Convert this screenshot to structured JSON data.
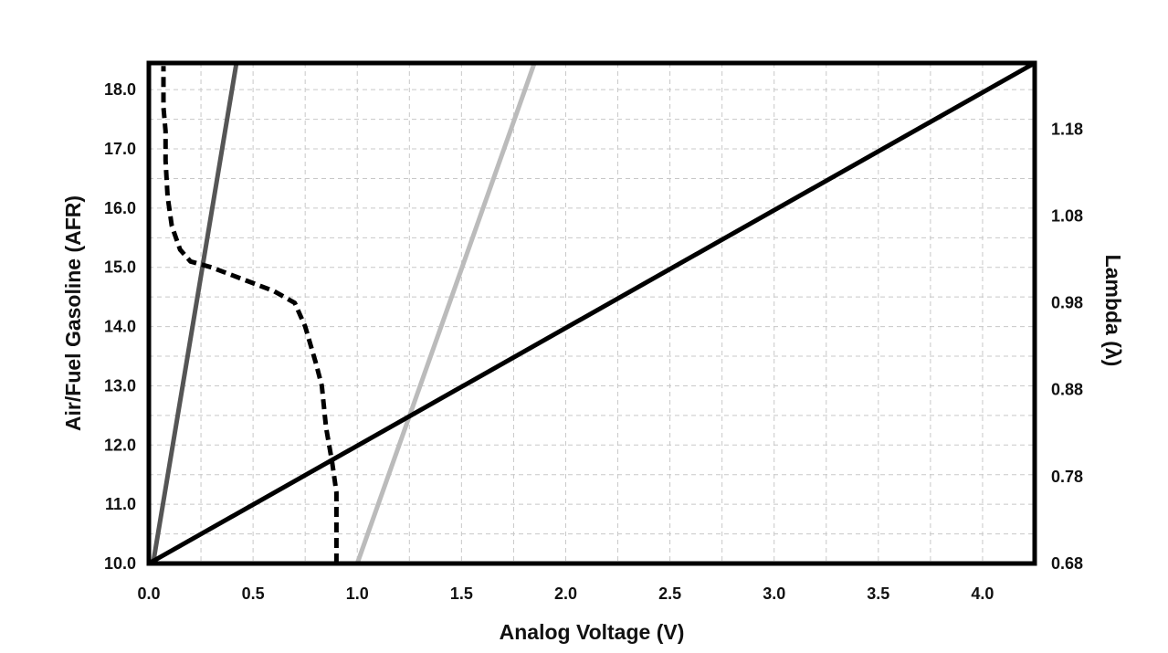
{
  "chart_data": {
    "type": "line",
    "title": "",
    "xlabel": "Analog Voltage (V)",
    "ylabel": "Air/Fuel Gasoline (AFR)",
    "y2label": "Lambda (λ)",
    "xlim": [
      0,
      4.25
    ],
    "ylim": [
      10,
      18.45
    ],
    "y2lim": [
      0.68,
      1.256
    ],
    "grid": true,
    "x_ticks": [
      "0.0",
      "0.5",
      "1.0",
      "1.5",
      "2.0",
      "2.5",
      "3.0",
      "3.5",
      "4.0"
    ],
    "y_ticks": [
      "10.0",
      "11.0",
      "12.0",
      "13.0",
      "14.0",
      "15.0",
      "16.0",
      "17.0",
      "18.0"
    ],
    "y2_ticks": [
      "0.68",
      "0.78",
      "0.88",
      "0.98",
      "1.08",
      "1.18"
    ],
    "series": [
      {
        "name": "dark-grey-line",
        "style": "solid",
        "color": "#555555",
        "x": [
          0.02,
          0.42
        ],
        "y": [
          10.0,
          18.45
        ]
      },
      {
        "name": "light-grey-line",
        "style": "solid",
        "color": "#bbbbbb",
        "x": [
          1.0,
          1.85
        ],
        "y": [
          10.0,
          18.45
        ]
      },
      {
        "name": "black-line",
        "style": "solid",
        "color": "#000000",
        "x": [
          0.0,
          4.25
        ],
        "y": [
          10.0,
          18.45
        ]
      },
      {
        "name": "dashed-curve",
        "style": "dashed",
        "color": "#000000",
        "x": [
          0.9,
          0.9,
          0.88,
          0.85,
          0.83,
          0.8,
          0.75,
          0.7,
          0.6,
          0.45,
          0.3,
          0.2,
          0.15,
          0.11,
          0.09,
          0.08,
          0.08,
          0.07,
          0.07
        ],
        "y": [
          10.0,
          11.2,
          11.7,
          12.3,
          13.0,
          13.4,
          14.0,
          14.4,
          14.6,
          14.8,
          15.0,
          15.1,
          15.3,
          15.7,
          16.2,
          16.8,
          17.3,
          17.7,
          18.4
        ]
      }
    ]
  }
}
